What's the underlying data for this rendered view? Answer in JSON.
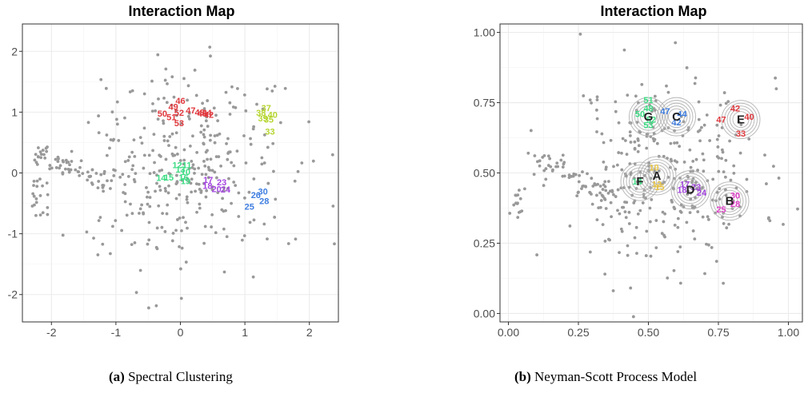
{
  "chart_data": [
    {
      "type": "scatter",
      "title": "Interaction Map",
      "xlim": [
        -2.45,
        2.45
      ],
      "ylim": [
        -2.45,
        2.45
      ],
      "x_ticks": [
        -2,
        -1,
        0,
        1,
        2
      ],
      "x_tick_labels": [
        "-2",
        "-1",
        "0",
        "1",
        "2"
      ],
      "y_ticks": [
        -2,
        -1,
        0,
        1,
        2
      ],
      "y_tick_labels": [
        "-2",
        "-1",
        "0",
        "1",
        "2"
      ],
      "grid": true,
      "background_color": "#999999",
      "clusters": [
        {
          "color": "#e0393e",
          "points": [
            {
              "label": "46",
              "x": 0.0,
              "y": 1.19
            },
            {
              "label": "49",
              "x": -0.11,
              "y": 1.09
            },
            {
              "label": "47",
              "x": 0.16,
              "y": 1.03
            },
            {
              "label": "50",
              "x": -0.28,
              "y": 0.98
            },
            {
              "label": "52",
              "x": -0.02,
              "y": 0.99
            },
            {
              "label": "51",
              "x": -0.14,
              "y": 0.92
            },
            {
              "label": "53",
              "x": -0.02,
              "y": 0.82
            },
            {
              "label": "48",
              "x": 0.3,
              "y": 1.0
            },
            {
              "label": "45",
              "x": 0.34,
              "y": 0.98
            },
            {
              "label": "44",
              "x": 0.41,
              "y": 0.99
            },
            {
              "label": "42",
              "x": 0.44,
              "y": 0.96
            }
          ]
        },
        {
          "color": "#b5d531",
          "points": [
            {
              "label": "37",
              "x": 1.33,
              "y": 1.07
            },
            {
              "label": "38",
              "x": 1.25,
              "y": 0.99
            },
            {
              "label": "40",
              "x": 1.43,
              "y": 0.96
            },
            {
              "label": "39",
              "x": 1.28,
              "y": 0.9
            },
            {
              "label": "35",
              "x": 1.37,
              "y": 0.88
            },
            {
              "label": "33",
              "x": 1.39,
              "y": 0.68
            }
          ]
        },
        {
          "color": "#3ddc84",
          "points": [
            {
              "label": "12",
              "x": -0.05,
              "y": 0.13
            },
            {
              "label": "11",
              "x": 0.1,
              "y": 0.13
            },
            {
              "label": "13",
              "x": 0.0,
              "y": 0.06
            },
            {
              "label": "10",
              "x": 0.08,
              "y": 0.02
            },
            {
              "label": "15",
              "x": -0.18,
              "y": -0.07
            },
            {
              "label": "14",
              "x": -0.3,
              "y": -0.08
            },
            {
              "label": "16",
              "x": 0.05,
              "y": -0.07
            },
            {
              "label": "19",
              "x": 0.08,
              "y": -0.13
            }
          ]
        },
        {
          "color": "#a445e0",
          "points": [
            {
              "label": "17",
              "x": 0.43,
              "y": -0.11
            },
            {
              "label": "23",
              "x": 0.64,
              "y": -0.15
            },
            {
              "label": "18",
              "x": 0.42,
              "y": -0.21
            },
            {
              "label": "20",
              "x": 0.56,
              "y": -0.26
            },
            {
              "label": "24",
              "x": 0.7,
              "y": -0.27
            }
          ]
        },
        {
          "color": "#3f7ee0",
          "points": [
            {
              "label": "30",
              "x": 1.28,
              "y": -0.3
            },
            {
              "label": "26",
              "x": 1.17,
              "y": -0.36
            },
            {
              "label": "28",
              "x": 1.3,
              "y": -0.46
            },
            {
              "label": "25",
              "x": 1.07,
              "y": -0.55
            }
          ]
        }
      ]
    },
    {
      "type": "scatter",
      "title": "Interaction Map",
      "xlim": [
        -0.03,
        1.05
      ],
      "ylim": [
        -0.03,
        1.03
      ],
      "x_ticks": [
        0,
        0.25,
        0.5,
        0.75,
        1
      ],
      "x_tick_labels": [
        "0.00",
        "0.25",
        "0.50",
        "0.75",
        "1.00"
      ],
      "y_ticks": [
        0,
        0.25,
        0.5,
        0.75,
        1
      ],
      "y_tick_labels": [
        "0.00",
        "0.25",
        "0.50",
        "0.75",
        "1.00"
      ],
      "grid": true,
      "background_color": "#999999",
      "centres": [
        {
          "label": "A",
          "x": 0.53,
          "y": 0.49
        },
        {
          "label": "B",
          "x": 0.79,
          "y": 0.4
        },
        {
          "label": "C",
          "x": 0.6,
          "y": 0.7
        },
        {
          "label": "D",
          "x": 0.65,
          "y": 0.44
        },
        {
          "label": "E",
          "x": 0.83,
          "y": 0.69
        },
        {
          "label": "F",
          "x": 0.47,
          "y": 0.47
        },
        {
          "label": "G",
          "x": 0.5,
          "y": 0.7
        }
      ],
      "clusters": [
        {
          "color": "#e0393e",
          "points": [
            {
              "label": "42",
              "x": 0.81,
              "y": 0.73
            },
            {
              "label": "47",
              "x": 0.76,
              "y": 0.69
            },
            {
              "label": "40",
              "x": 0.86,
              "y": 0.7
            },
            {
              "label": "33",
              "x": 0.83,
              "y": 0.64
            }
          ]
        },
        {
          "color": "#3ddc84",
          "points": [
            {
              "label": "51",
              "x": 0.5,
              "y": 0.76
            },
            {
              "label": "48",
              "x": 0.5,
              "y": 0.73
            },
            {
              "label": "50",
              "x": 0.47,
              "y": 0.71
            },
            {
              "label": "52",
              "x": 0.51,
              "y": 0.69
            },
            {
              "label": "53",
              "x": 0.5,
              "y": 0.67
            }
          ]
        },
        {
          "color": "#3f7ee0",
          "points": [
            {
              "label": "47",
              "x": 0.56,
              "y": 0.72
            },
            {
              "label": "44",
              "x": 0.62,
              "y": 0.71
            },
            {
              "label": "42",
              "x": 0.6,
              "y": 0.68
            }
          ]
        },
        {
          "color": "#e8c547",
          "points": [
            {
              "label": "10",
              "x": 0.52,
              "y": 0.52
            },
            {
              "label": "12",
              "x": 0.53,
              "y": 0.46
            },
            {
              "label": "15",
              "x": 0.54,
              "y": 0.45
            }
          ]
        },
        {
          "color": "#3ddc84",
          "points": [
            {
              "label": "14",
              "x": 0.46,
              "y": 0.47
            }
          ]
        },
        {
          "color": "#a445e0",
          "points": [
            {
              "label": "17",
              "x": 0.63,
              "y": 0.46
            },
            {
              "label": "23",
              "x": 0.67,
              "y": 0.45
            },
            {
              "label": "18",
              "x": 0.62,
              "y": 0.44
            },
            {
              "label": "24",
              "x": 0.69,
              "y": 0.43
            }
          ]
        },
        {
          "color": "#e040c8",
          "points": [
            {
              "label": "30",
              "x": 0.81,
              "y": 0.42
            },
            {
              "label": "28",
              "x": 0.81,
              "y": 0.39
            },
            {
              "label": "25",
              "x": 0.76,
              "y": 0.37
            }
          ]
        }
      ]
    }
  ],
  "captions": [
    {
      "tag": "(a)",
      "text": "Spectral Clustering"
    },
    {
      "tag": "(b)",
      "text": "Neyman-Scott Process Model"
    }
  ]
}
